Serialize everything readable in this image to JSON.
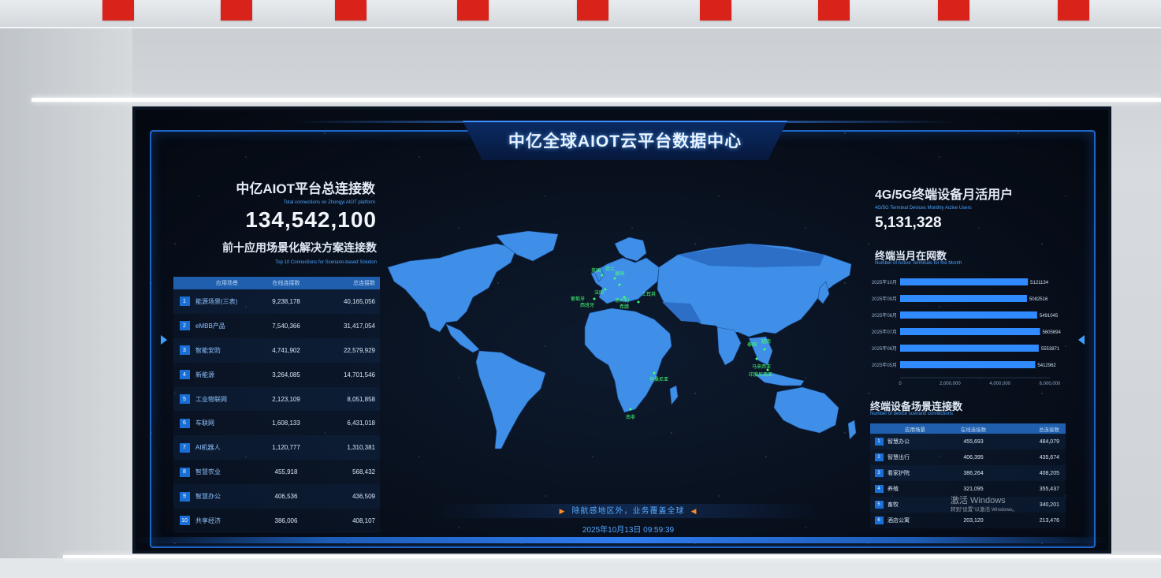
{
  "header": {
    "title": "中亿全球AIOT云平台数据中心"
  },
  "left_panel": {
    "title": "中亿AIOT平台总连接数",
    "subtitle": "Total connections on Zhongyi AIOT platform",
    "total": "134,542,100",
    "top10_title": "前十应用场景化解决方案连接数",
    "top10_subtitle": "Top 10 Connections for Scenario-based Solution",
    "table": {
      "columns": [
        "应用场景",
        "在线连接数",
        "总连接数"
      ],
      "rows": [
        {
          "rank": "1",
          "name": "能源场景(三表)",
          "online": "9,238,178",
          "total": "40,165,056"
        },
        {
          "rank": "2",
          "name": "eMBB产品",
          "online": "7,540,366",
          "total": "31,417,054"
        },
        {
          "rank": "3",
          "name": "智能安防",
          "online": "4,741,902",
          "total": "22,579,929"
        },
        {
          "rank": "4",
          "name": "新能源",
          "online": "3,264,085",
          "total": "14,701,546"
        },
        {
          "rank": "5",
          "name": "工业物联网",
          "online": "2,123,109",
          "total": "8,051,858"
        },
        {
          "rank": "6",
          "name": "车联网",
          "online": "1,608,133",
          "total": "6,431,018"
        },
        {
          "rank": "7",
          "name": "AI机器人",
          "online": "1,120,777",
          "total": "1,310,381"
        },
        {
          "rank": "8",
          "name": "智慧农业",
          "online": "455,918",
          "total": "568,432"
        },
        {
          "rank": "9",
          "name": "智慧办公",
          "online": "406,536",
          "total": "436,509"
        },
        {
          "rank": "10",
          "name": "共享经济",
          "online": "386,006",
          "total": "408,107"
        }
      ]
    }
  },
  "map": {
    "country_labels": [
      "英国",
      "荷兰",
      "德国",
      "法国",
      "葡萄牙",
      "西班牙",
      "意大利",
      "希腊",
      "土耳其",
      "泰国",
      "越南",
      "马来西亚",
      "印度尼西亚",
      "坦桑尼亚",
      "南非"
    ],
    "banner": "除航感地区外，业务覆盖全球",
    "timestamp": "2025年10月13日 09:59:39",
    "colors": {
      "land": "#3f8fe8",
      "highlight": "#46ff74",
      "ocean": "#070d18"
    }
  },
  "right_panel": {
    "title": "4G/5G终端设备月活用户",
    "subtitle": "4G/5G Terminal Devices Monthly Active Users",
    "value": "5,131,328",
    "monthly_title": "终端当月在网数",
    "monthly_subtitle": "Number of Active Terminals for the Month",
    "scenario_title": "终端设备场景连接数",
    "scenario_subtitle": "Number of device scenario connections",
    "scenario_table": {
      "columns": [
        "应用场景",
        "在线连接数",
        "总连接数"
      ],
      "rows": [
        {
          "rank": "1",
          "name": "智慧办公",
          "online": "455,693",
          "total": "484,079"
        },
        {
          "rank": "2",
          "name": "智慧出行",
          "online": "406,395",
          "total": "435,674"
        },
        {
          "rank": "3",
          "name": "看家护院",
          "online": "386,264",
          "total": "408,205"
        },
        {
          "rank": "4",
          "name": "养殖",
          "online": "321,095",
          "total": "355,437"
        },
        {
          "rank": "5",
          "name": "畜牧",
          "online": "",
          "total": "340,201"
        },
        {
          "rank": "6",
          "name": "酒店公寓",
          "online": "203,120",
          "total": "213,476"
        }
      ]
    }
  },
  "chart_data": {
    "type": "bar",
    "orientation": "horizontal",
    "categories": [
      "2025年10月",
      "2025年09月",
      "2025年08月",
      "2025年07月",
      "2025年06月",
      "2025年05月"
    ],
    "values": [
      5121134,
      5082516,
      5491045,
      5605694,
      5553871,
      5412962
    ],
    "value_labels": [
      "5121134",
      "5082516",
      "5491045",
      "5605694",
      "5553871",
      "5412962"
    ],
    "xlim": [
      0,
      6000000
    ],
    "xticks": [
      "0",
      "2,000,000",
      "4,000,000",
      "6,000,000"
    ],
    "color": "#2f8bff"
  },
  "watermark": {
    "line1": "激活 Windows",
    "line2": "转到\"设置\"以激活 Windows。"
  }
}
